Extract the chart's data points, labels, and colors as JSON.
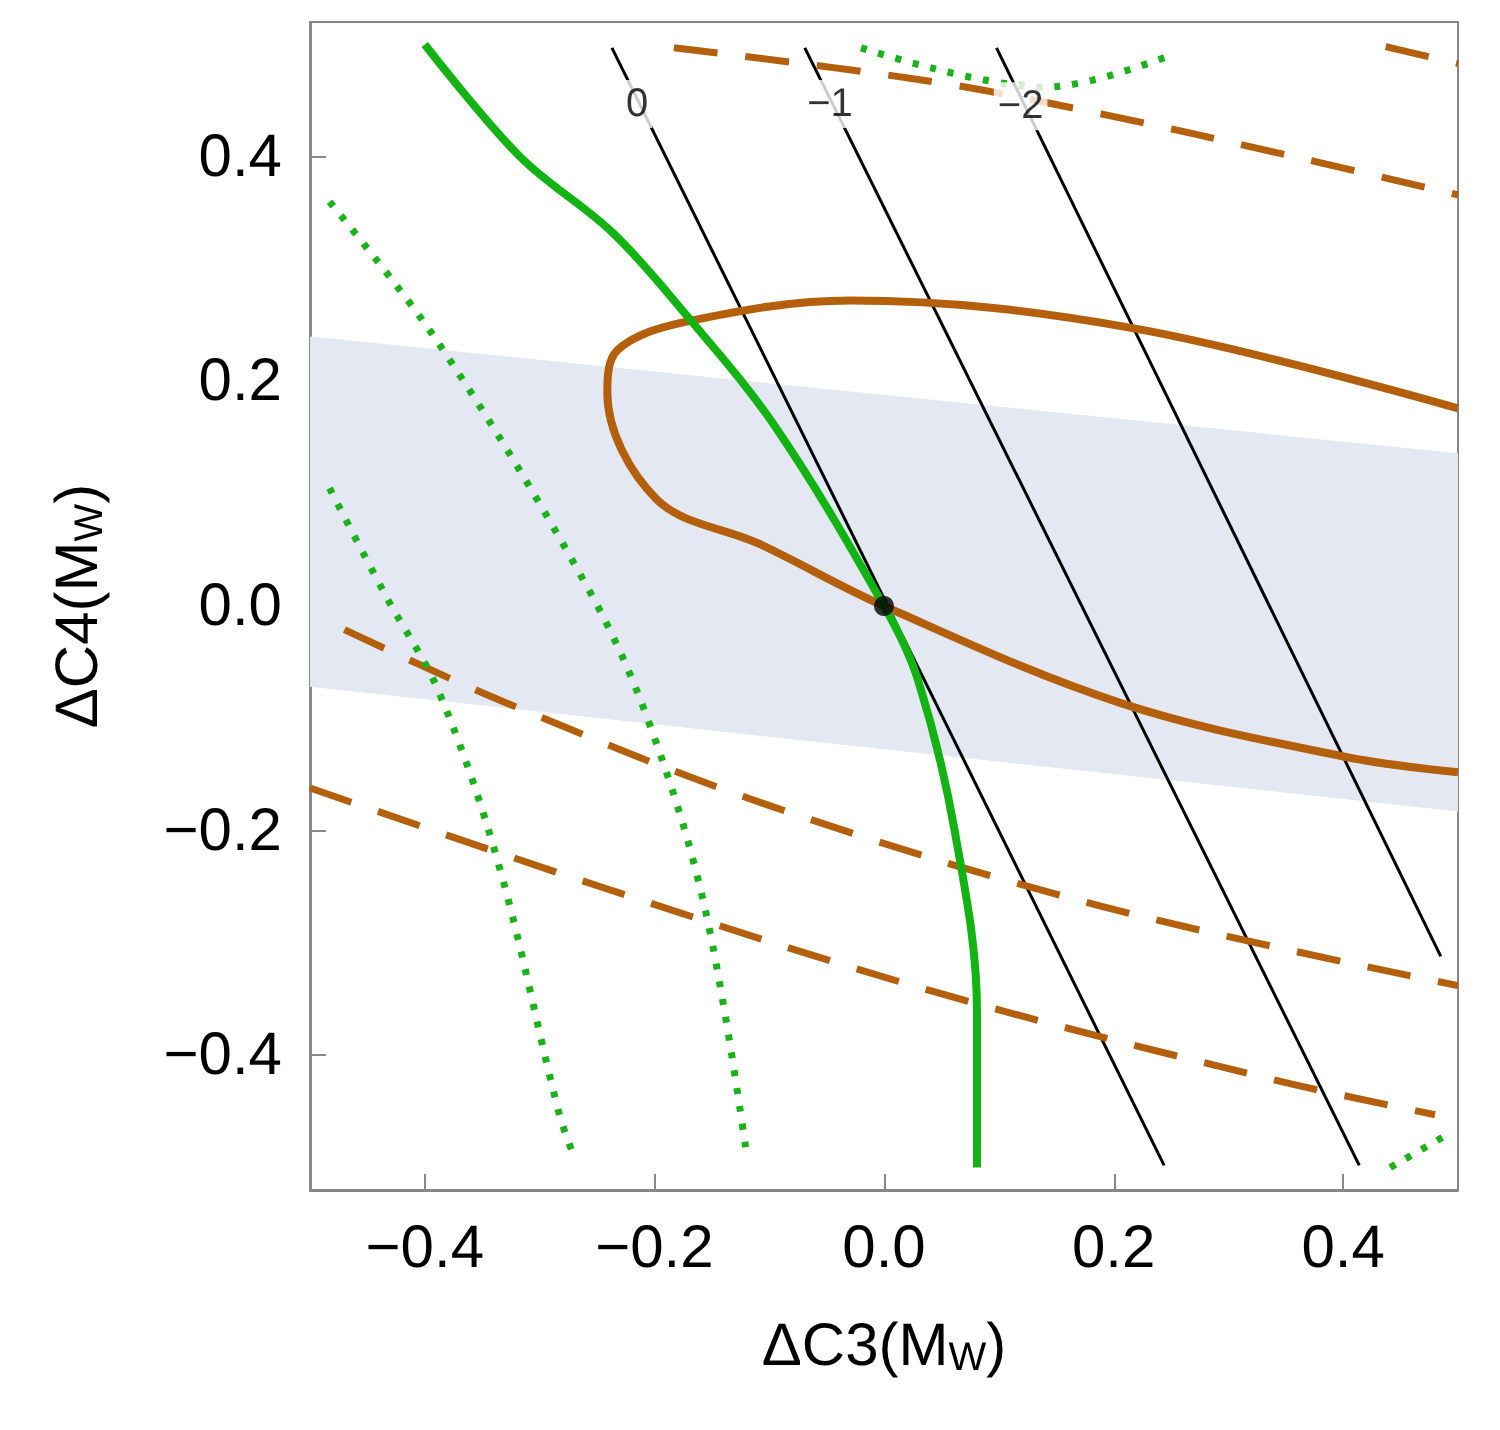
{
  "chart_data": {
    "type": "line",
    "xlabel": "ΔC3(M$_{W}$)",
    "ylabel": "ΔC4(M$_{W}$)",
    "xlim": [
      -0.5,
      0.5
    ],
    "ylim": [
      -0.52,
      0.52
    ],
    "xticks": [
      -0.4,
      -0.2,
      {
        "value": 0,
        "label": "0.0"
      },
      0.2,
      0.4
    ],
    "yticks": [
      -0.4,
      -0.2,
      {
        "value": 0,
        "label": "0.0"
      },
      0.2,
      0.4
    ],
    "grid": false,
    "marker": "none",
    "series": [
      {
        "type": "area",
        "color": "#e3e8f2",
        "x": [
          -0.5,
          0.5,
          0.5,
          -0.5
        ],
        "values": [
          0.24,
          0.136,
          -0.183,
          -0.072
        ]
      },
      {
        "color": "#000000",
        "line_style": "solid",
        "x": [
          -0.237,
          0.244
        ],
        "values": [
          0.497,
          -0.498
        ]
      },
      {
        "color": "#000000",
        "line_style": "solid",
        "x": [
          -0.069,
          0.414
        ],
        "values": [
          0.497,
          -0.498
        ]
      },
      {
        "color": "#000000",
        "line_style": "solid",
        "x": [
          0.098,
          0.485
        ],
        "values": [
          0.497,
          -0.312
        ]
      },
      {
        "color": "#b35f0c",
        "line_style": "dashed",
        "x": [
          -0.183,
          0.042,
          0.19,
          0.336,
          0.5
        ],
        "values": [
          0.497,
          0.467,
          0.438,
          0.405,
          0.366
        ]
      },
      {
        "color": "#b35f0c",
        "line_style": "dashed",
        "x": [
          0.437,
          0.5
        ],
        "values": [
          0.498,
          0.483
        ]
      },
      {
        "color": "#b35f0c",
        "line_style": "dashed",
        "x": [
          -0.47,
          -0.332,
          -0.099,
          0.188,
          0.5
        ],
        "values": [
          -0.021,
          -0.085,
          -0.178,
          -0.267,
          -0.338
        ]
      },
      {
        "color": "#b35f0c",
        "line_style": "dashed",
        "x": [
          -0.5,
          -0.247,
          0.042,
          0.336,
          0.48
        ],
        "values": [
          -0.162,
          -0.25,
          -0.343,
          -0.421,
          -0.453
        ]
      },
      {
        "color": "#19b319",
        "line_style": "dotted",
        "x": [
          -0.483,
          -0.388,
          -0.258,
          -0.205,
          -0.156,
          -0.12
        ],
        "values": [
          0.36,
          0.234,
          0.016,
          -0.103,
          -0.269,
          -0.486
        ]
      },
      {
        "color": "#19b319",
        "line_style": "dotted",
        "x": [
          -0.483,
          -0.434,
          -0.388,
          -0.336,
          -0.283,
          -0.27
        ],
        "values": [
          0.105,
          0.009,
          -0.076,
          -0.229,
          -0.452,
          -0.49
        ]
      },
      {
        "color": "#19b319",
        "line_style": "dotted",
        "x": [
          -0.02,
          0.141,
          0.251
        ],
        "values": [
          0.497,
          0.462,
          0.491
        ]
      },
      {
        "color": "#19b319",
        "line_style": "dotted",
        "x": [
          0.441,
          0.49
        ],
        "values": [
          -0.5,
          -0.471
        ]
      },
      {
        "color": "#b35f0c",
        "line_style": "solid",
        "x": [
          0.5,
          0.219,
          -0.029,
          -0.173,
          -0.232,
          -0.241,
          -0.198,
          -0.108,
          0.0,
          0.205,
          0.4,
          0.5
        ],
        "values": [
          0.176,
          0.247,
          0.272,
          0.253,
          0.228,
          0.19,
          0.095,
          0.055,
          0.0,
          -0.086,
          -0.134,
          -0.148
        ]
      },
      {
        "color": "#12b312",
        "line_style": "solid",
        "x": [
          -0.4,
          -0.317,
          -0.237,
          -0.173,
          -0.095,
          0.0,
          0.029,
          0.061,
          0.081,
          0.081
        ],
        "values": [
          0.5,
          0.4,
          0.333,
          0.26,
          0.16,
          0.0,
          -0.064,
          -0.197,
          -0.362,
          -0.5
        ]
      },
      {
        "type": "scatter",
        "color": "#000000",
        "marker": "circle",
        "x": [
          0.0
        ],
        "values": [
          0.0
        ]
      }
    ],
    "annotations": [
      {
        "text": "0",
        "x": -0.215,
        "y": 0.447
      },
      {
        "text": "−1",
        "x": -0.047,
        "y": 0.447
      },
      {
        "text": "−2",
        "x": 0.119,
        "y": 0.445
      }
    ]
  }
}
